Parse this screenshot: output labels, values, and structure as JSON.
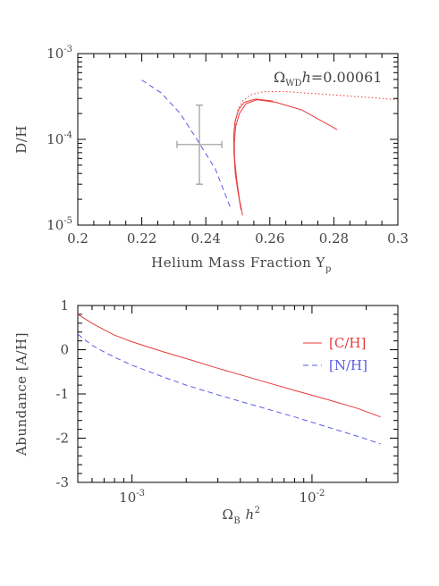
{
  "colors": {
    "red": "#e83a3a",
    "blue": "#5a5ae6",
    "gray": "#999999",
    "axis": "#000000"
  },
  "chart_data": [
    {
      "type": "line",
      "xlabel": "Helium Mass Fraction Y",
      "xlabel_sub": "p",
      "ylabel": "D/H",
      "xlim": [
        0.2,
        0.3
      ],
      "ylim": [
        1e-05,
        0.001
      ],
      "yscale": "log",
      "xticks": [
        "0.2",
        "0.22",
        "0.24",
        "0.26",
        "0.28",
        "0.3"
      ],
      "yticks": [
        {
          "base": "10",
          "exp": "-5"
        },
        {
          "base": "10",
          "exp": "-4"
        },
        {
          "base": "10",
          "exp": "-3"
        }
      ],
      "annotation": {
        "omega": "Ω",
        "sub": "WD",
        "h": "h",
        "value": "=0.00061"
      },
      "series": [
        {
          "style": "dashed",
          "color": "blue",
          "x": [
            0.22,
            0.226,
            0.232,
            0.238,
            0.243,
            0.248
          ],
          "y": [
            0.00049,
            0.00035,
            0.0002,
            9e-05,
            4.5e-05,
            1.5e-05
          ]
        },
        {
          "style": "solid",
          "color": "red",
          "x": [
            0.2515,
            0.2505,
            0.2496,
            0.249,
            0.2489,
            0.2493,
            0.2505,
            0.2525,
            0.256,
            0.262,
            0.27,
            0.281
          ],
          "y": [
            1.3e-05,
            2e-05,
            3.5e-05,
            6e-05,
            9e-05,
            0.00014,
            0.0002,
            0.00026,
            0.00029,
            0.00027,
            0.00022,
            0.00013
          ]
        },
        {
          "style": "solid",
          "color": "red",
          "x": [
            0.251,
            0.25,
            0.2492,
            0.2488,
            0.2487,
            0.2491,
            0.2502,
            0.252,
            0.2555,
            0.261
          ],
          "y": [
            1.5e-05,
            2.5e-05,
            4e-05,
            7e-05,
            0.00011,
            0.00016,
            0.00022,
            0.00027,
            0.000295,
            0.00028
          ]
        },
        {
          "style": "dotted",
          "color": "red",
          "x": [
            0.249,
            0.2493,
            0.25,
            0.2515,
            0.254,
            0.258,
            0.265,
            0.275,
            0.285,
            0.3
          ],
          "y": [
            0.0001,
            0.00016,
            0.00022,
            0.00028,
            0.00033,
            0.00036,
            0.00036,
            0.00034,
            0.00032,
            0.00029
          ]
        }
      ],
      "errorbar": {
        "x": 0.238,
        "y": 8.7e-05,
        "xerr": [
          0.231,
          0.245
        ],
        "yerr": [
          3e-05,
          0.00025
        ]
      }
    },
    {
      "type": "line",
      "xlabel": "Ω",
      "xlabel_sub": "B",
      "xlabel_tail": " h",
      "xlabel_sup": "2",
      "ylabel": "Abundance [A/H]",
      "xscale": "log",
      "xlim": [
        0.0005,
        0.03
      ],
      "ylim": [
        -3,
        1
      ],
      "xticks": [
        {
          "base": "10",
          "exp": "-3"
        },
        {
          "base": "10",
          "exp": "-2"
        }
      ],
      "yticks": [
        "-3",
        "-2",
        "-1",
        "0",
        "1"
      ],
      "legend": {
        "placement": "top-right",
        "entries": [
          "[C/H]",
          "[N/H]"
        ]
      },
      "series": [
        {
          "name": "[C/H]",
          "style": "solid",
          "color": "red",
          "x": [
            0.0005,
            0.0006,
            0.0007,
            0.0008,
            0.001,
            0.0015,
            0.002,
            0.003,
            0.005,
            0.008,
            0.012,
            0.018,
            0.024
          ],
          "y": [
            0.8,
            0.6,
            0.45,
            0.33,
            0.18,
            -0.05,
            -0.2,
            -0.42,
            -0.68,
            -0.92,
            -1.12,
            -1.33,
            -1.52
          ]
        },
        {
          "name": "[N/H]",
          "style": "dashed",
          "color": "blue",
          "x": [
            0.0005,
            0.0006,
            0.0007,
            0.0008,
            0.001,
            0.0015,
            0.002,
            0.003,
            0.005,
            0.008,
            0.012,
            0.018,
            0.024
          ],
          "y": [
            0.35,
            0.1,
            -0.05,
            -0.17,
            -0.35,
            -0.62,
            -0.8,
            -1.02,
            -1.28,
            -1.52,
            -1.74,
            -1.96,
            -2.13
          ]
        }
      ]
    }
  ]
}
